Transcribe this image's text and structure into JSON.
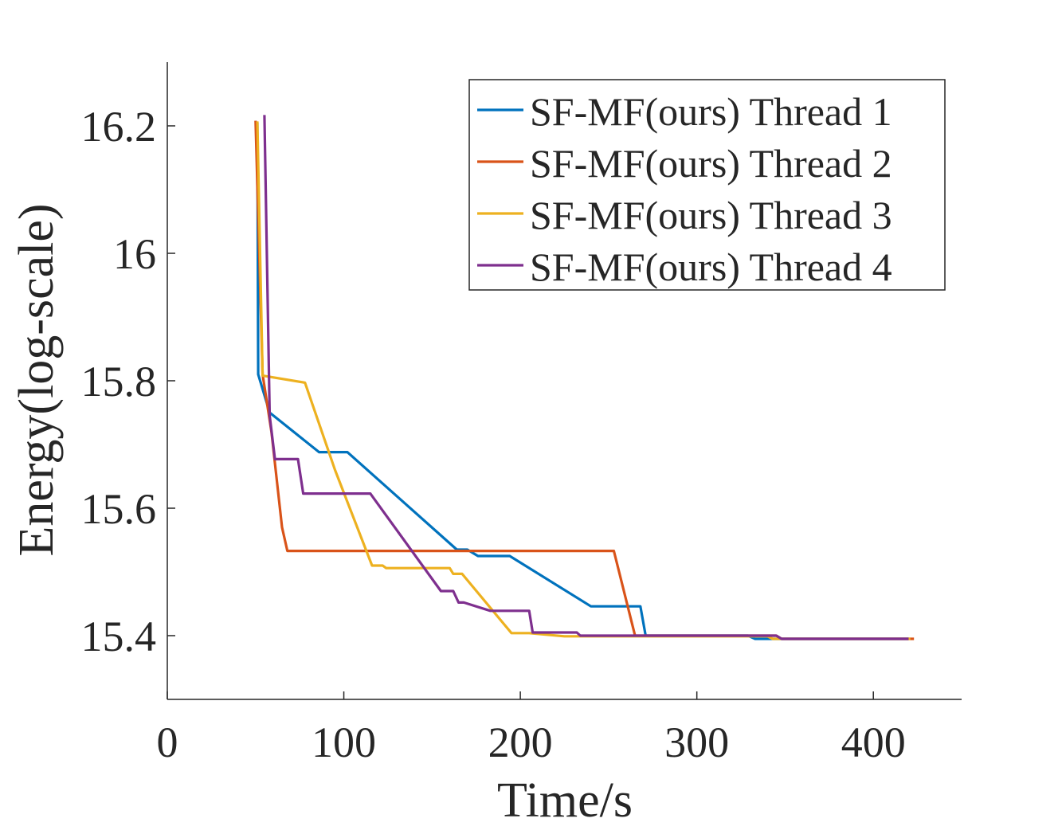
{
  "chart_data": {
    "type": "line",
    "title": "",
    "xlabel": "Time/s",
    "ylabel": "Energy(log-scale)",
    "xlim": [
      0,
      450
    ],
    "ylim": [
      15.3,
      16.3
    ],
    "xticks": [
      0,
      100,
      200,
      300,
      400
    ],
    "yticks": [
      15.4,
      15.6,
      15.8,
      16.0,
      16.2
    ],
    "xtick_labels": [
      "0",
      "100",
      "200",
      "300",
      "400"
    ],
    "ytick_labels": [
      "15.4",
      "15.6",
      "15.8",
      "16",
      "16.2"
    ],
    "grid": false,
    "legend_position": "top-right",
    "series": [
      {
        "name": "SF-MF(ours) Thread 1",
        "color": "#0072BD",
        "points": [
          [
            51,
            16.205
          ],
          [
            51.5,
            15.81
          ],
          [
            58,
            15.75
          ],
          [
            86,
            15.688
          ],
          [
            102,
            15.688
          ],
          [
            164,
            15.535
          ],
          [
            170,
            15.535
          ],
          [
            176,
            15.525
          ],
          [
            194,
            15.525
          ],
          [
            240,
            15.446
          ],
          [
            268,
            15.446
          ],
          [
            271,
            15.4
          ],
          [
            329,
            15.4
          ],
          [
            333,
            15.395
          ],
          [
            420,
            15.395
          ]
        ]
      },
      {
        "name": "SF-MF(ours) Thread 2",
        "color": "#D95319",
        "points": [
          [
            50,
            16.208
          ],
          [
            54,
            15.81
          ],
          [
            59,
            15.72
          ],
          [
            65,
            15.57
          ],
          [
            68,
            15.533
          ],
          [
            170,
            15.533
          ],
          [
            253,
            15.533
          ],
          [
            265,
            15.4
          ],
          [
            345,
            15.4
          ],
          [
            348,
            15.395
          ],
          [
            423,
            15.395
          ]
        ]
      },
      {
        "name": "SF-MF(ours) Thread 3",
        "color": "#EDB120",
        "points": [
          [
            51,
            16.207
          ],
          [
            54,
            15.808
          ],
          [
            78,
            15.797
          ],
          [
            95,
            15.66
          ],
          [
            116,
            15.51
          ],
          [
            122,
            15.51
          ],
          [
            124,
            15.506
          ],
          [
            160,
            15.506
          ],
          [
            162,
            15.497
          ],
          [
            167,
            15.497
          ],
          [
            195,
            15.404
          ],
          [
            205,
            15.404
          ],
          [
            225,
            15.399
          ],
          [
            340,
            15.399
          ],
          [
            343,
            15.395
          ],
          [
            421,
            15.395
          ]
        ]
      },
      {
        "name": "SF-MF(ours) Thread 4",
        "color": "#7E2F8E",
        "points": [
          [
            55,
            16.217
          ],
          [
            58,
            15.745
          ],
          [
            61,
            15.677
          ],
          [
            74,
            15.677
          ],
          [
            77,
            15.623
          ],
          [
            115,
            15.623
          ],
          [
            155,
            15.47
          ],
          [
            162,
            15.47
          ],
          [
            165,
            15.452
          ],
          [
            168,
            15.452
          ],
          [
            183,
            15.439
          ],
          [
            205,
            15.439
          ],
          [
            207,
            15.405
          ],
          [
            232,
            15.405
          ],
          [
            234,
            15.4
          ],
          [
            345,
            15.4
          ],
          [
            348,
            15.395
          ],
          [
            420,
            15.395
          ]
        ]
      }
    ]
  }
}
